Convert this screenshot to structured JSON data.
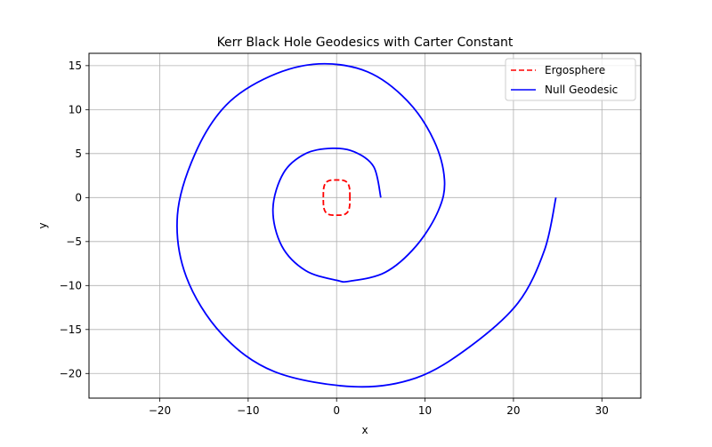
{
  "chart_data": {
    "type": "line",
    "title": "Kerr Black Hole Geodesics with Carter Constant",
    "xlabel": "x",
    "ylabel": "y",
    "xlim": [
      -28,
      34.4
    ],
    "ylim": [
      -22.8,
      16.4
    ],
    "xticks": [
      -20,
      -10,
      0,
      10,
      20,
      30
    ],
    "yticks": [
      -20,
      -15,
      -10,
      -5,
      0,
      5,
      10,
      15
    ],
    "xtick_labels": [
      "−20",
      "−10",
      "0",
      "10",
      "20",
      "30"
    ],
    "ytick_labels": [
      "−20",
      "−15",
      "−10",
      "−5",
      "0",
      "5",
      "10",
      "15"
    ],
    "grid": true,
    "legend_position": "upper right",
    "series": [
      {
        "name": "Ergosphere",
        "style": "dashed",
        "color": "#ff0000",
        "shape": "superellipse",
        "semi_axis_x": 1.5,
        "semi_axis_y": 2.0
      },
      {
        "name": "Null Geodesic",
        "style": "solid",
        "color": "#0000ff",
        "shape": "spiral",
        "points": [
          [
            5.0,
            0.0
          ],
          [
            4.2,
            3.5
          ],
          [
            2.0,
            5.2
          ],
          [
            -0.5,
            5.6
          ],
          [
            -3.5,
            5.0
          ],
          [
            -6.0,
            2.8
          ],
          [
            -7.2,
            -1.3
          ],
          [
            -6.2,
            -5.5
          ],
          [
            -3.5,
            -8.3
          ],
          [
            0.0,
            -9.4
          ],
          [
            1.5,
            -9.5
          ],
          [
            5.5,
            -8.5
          ],
          [
            9.0,
            -5.5
          ],
          [
            11.5,
            -1.5
          ],
          [
            12.2,
            2.0
          ],
          [
            11.0,
            6.5
          ],
          [
            8.0,
            11.0
          ],
          [
            3.5,
            14.3
          ],
          [
            -2.0,
            15.2
          ],
          [
            -7.5,
            13.8
          ],
          [
            -12.5,
            10.5
          ],
          [
            -16.0,
            5.0
          ],
          [
            -18.0,
            -2.0
          ],
          [
            -17.0,
            -9.0
          ],
          [
            -13.0,
            -15.5
          ],
          [
            -7.0,
            -19.8
          ],
          [
            2.0,
            -21.5
          ],
          [
            9.0,
            -20.5
          ],
          [
            15.0,
            -17.0
          ],
          [
            20.5,
            -12.0
          ],
          [
            23.5,
            -6.0
          ],
          [
            24.8,
            0.0
          ]
        ]
      }
    ]
  }
}
